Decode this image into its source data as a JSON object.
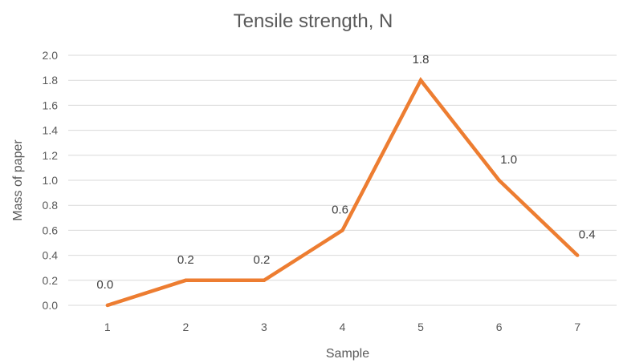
{
  "chart_data": {
    "type": "line",
    "title": "Tensile strength, N",
    "xlabel": "Sample",
    "ylabel": "Mass of paper",
    "categories": [
      "1",
      "2",
      "3",
      "4",
      "5",
      "6",
      "7"
    ],
    "series": [
      {
        "values": [
          0.0,
          0.2,
          0.2,
          0.6,
          1.8,
          1.0,
          0.4
        ],
        "color": "#ED7D31"
      }
    ],
    "data_labels": [
      "0.0",
      "0.2",
      "0.2",
      "0.6",
      "1.8",
      "1.0",
      "0.4"
    ],
    "ylim": [
      0,
      2.0
    ],
    "yticks": [
      "0.0",
      "0.2",
      "0.4",
      "0.6",
      "0.8",
      "1.0",
      "1.2",
      "1.4",
      "1.6",
      "1.8",
      "2.0"
    ],
    "grid": true,
    "legend": "none"
  }
}
